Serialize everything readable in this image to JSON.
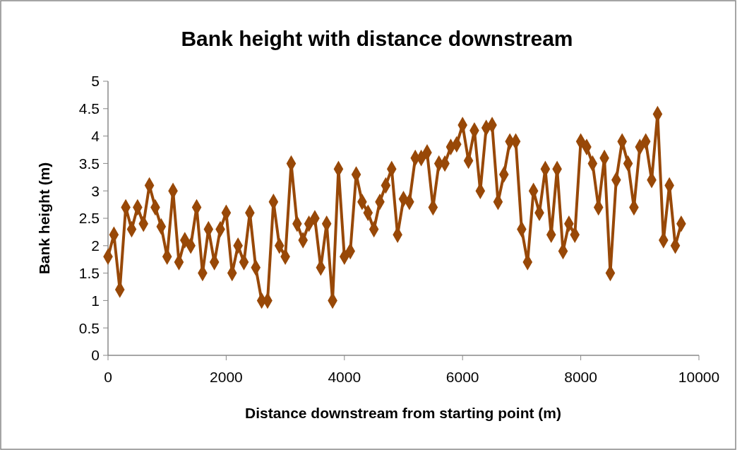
{
  "chart_data": {
    "type": "line",
    "title": "Bank height with distance downstream",
    "xlabel": "Distance downstream from starting point (m)",
    "ylabel": "Bank height (m)",
    "x": [
      0,
      100,
      200,
      300,
      400,
      500,
      600,
      700,
      800,
      900,
      1000,
      1100,
      1200,
      1300,
      1400,
      1500,
      1600,
      1700,
      1800,
      1900,
      2000,
      2100,
      2200,
      2300,
      2400,
      2500,
      2600,
      2700,
      2800,
      2900,
      3000,
      3100,
      3200,
      3300,
      3400,
      3500,
      3600,
      3700,
      3800,
      3900,
      4000,
      4100,
      4200,
      4300,
      4400,
      4500,
      4600,
      4700,
      4800,
      4900,
      5000,
      5100,
      5200,
      5300,
      5400,
      5500,
      5600,
      5700,
      5800,
      5900,
      6000,
      6100,
      6200,
      6300,
      6400,
      6500,
      6600,
      6700,
      6800,
      6900,
      7000,
      7100,
      7200,
      7300,
      7400,
      7500,
      7600,
      7700,
      7800,
      7900,
      8000,
      8100,
      8200,
      8300,
      8400,
      8500,
      8600,
      8700,
      8800,
      8900,
      9000,
      9100,
      9200,
      9300,
      9400,
      9500,
      9600,
      9700
    ],
    "series": [
      {
        "color": "#984807",
        "values": [
          1.8,
          2.2,
          1.2,
          2.7,
          2.3,
          2.7,
          2.4,
          3.1,
          2.7,
          2.35,
          1.8,
          3.0,
          1.7,
          2.1,
          2.0,
          2.7,
          1.5,
          2.3,
          1.7,
          2.3,
          2.6,
          1.5,
          2.0,
          1.7,
          2.6,
          1.6,
          1.0,
          1.0,
          2.8,
          2.0,
          1.8,
          3.5,
          2.4,
          2.1,
          2.4,
          2.5,
          1.6,
          2.4,
          1.0,
          3.4,
          1.8,
          1.9,
          3.3,
          2.8,
          2.6,
          2.3,
          2.8,
          3.1,
          3.4,
          2.2,
          2.85,
          2.8,
          3.6,
          3.6,
          3.7,
          2.7,
          3.5,
          3.5,
          3.8,
          3.85,
          4.2,
          3.55,
          4.1,
          3.0,
          4.15,
          4.2,
          2.8,
          3.3,
          3.9,
          3.9,
          2.3,
          1.7,
          3.0,
          2.6,
          3.4,
          2.2,
          3.4,
          1.9,
          2.4,
          2.2,
          3.9,
          3.8,
          3.5,
          2.7,
          3.6,
          1.5,
          3.2,
          3.9,
          3.5,
          2.7,
          3.8,
          3.9,
          3.2,
          4.4,
          2.1,
          3.1,
          2.0,
          2.4
        ]
      }
    ],
    "xlim": [
      0,
      10000
    ],
    "xticks": [
      0,
      2000,
      4000,
      6000,
      8000,
      10000
    ],
    "ylim": [
      0,
      5
    ],
    "yticks": [
      0,
      0.5,
      1,
      1.5,
      2,
      2.5,
      3,
      3.5,
      4,
      4.5,
      5
    ],
    "marker": "diamond",
    "line_style": "solid",
    "legend": false,
    "grid": false
  }
}
